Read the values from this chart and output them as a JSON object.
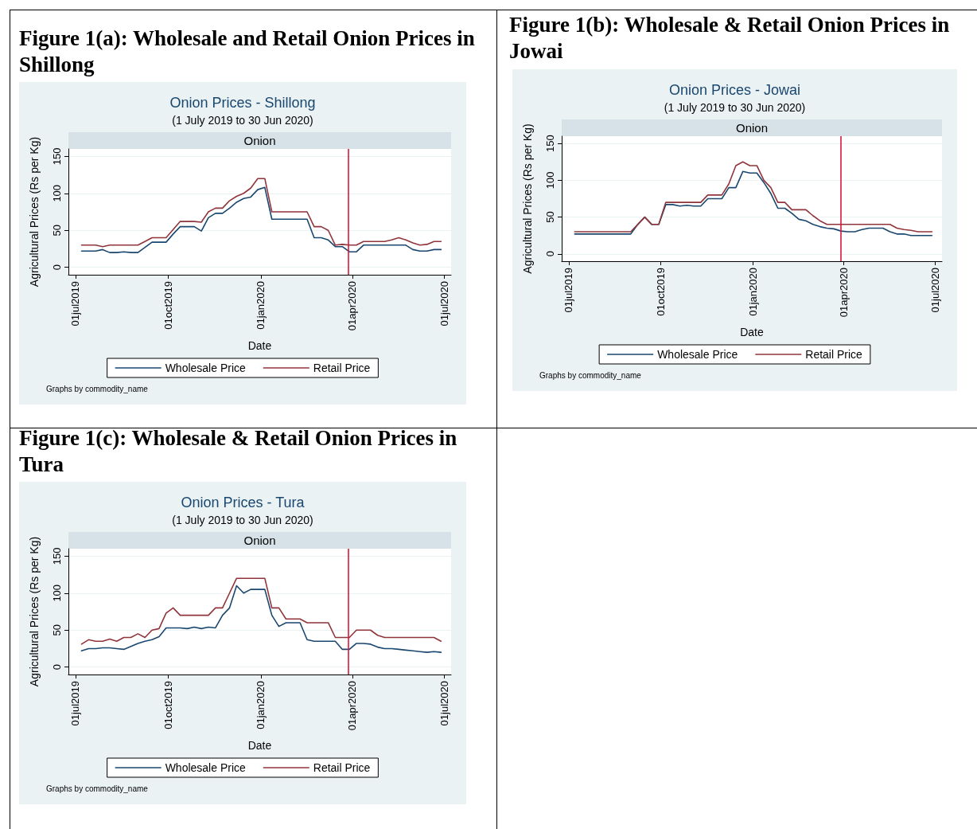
{
  "chart_data": [
    {
      "type": "line",
      "title": "Onion Prices - Shillong",
      "subtitle": "(1 July 2019 to 30 Jun 2020)",
      "xlabel": "Date",
      "ylabel": "Agricultural Prices (Rs per Kg)",
      "annotations": [
        "Figure 1(a): Wholesale and Retail Onion Prices in Shillong",
        "Onion",
        "Graphs by commodity_name"
      ],
      "x": [
        "2019-07-07",
        "2019-07-14",
        "2019-07-21",
        "2019-07-28",
        "2019-08-04",
        "2019-08-11",
        "2019-08-18",
        "2019-08-25",
        "2019-09-01",
        "2019-09-08",
        "2019-09-15",
        "2019-09-22",
        "2019-09-29",
        "2019-10-06",
        "2019-10-13",
        "2019-10-20",
        "2019-10-27",
        "2019-11-03",
        "2019-11-10",
        "2019-11-17",
        "2019-11-24",
        "2019-12-01",
        "2019-12-08",
        "2019-12-15",
        "2019-12-22",
        "2019-12-29",
        "2020-01-05",
        "2020-01-12",
        "2020-01-19",
        "2020-01-26",
        "2020-02-02",
        "2020-02-09",
        "2020-02-16",
        "2020-02-23",
        "2020-03-01",
        "2020-03-08",
        "2020-03-15",
        "2020-03-22",
        "2020-03-29",
        "2020-04-05",
        "2020-04-12",
        "2020-04-19",
        "2020-04-26",
        "2020-05-03",
        "2020-05-10",
        "2020-05-17",
        "2020-05-24",
        "2020-05-31",
        "2020-06-07",
        "2020-06-14",
        "2020-06-21",
        "2020-06-28"
      ],
      "series": [
        {
          "name": "Wholesale Price",
          "color": "#1a476f",
          "values": [
            22,
            22,
            22,
            24,
            20,
            20,
            21,
            20,
            20,
            27,
            34,
            34,
            34,
            45,
            55,
            55,
            55,
            49,
            67,
            73,
            73,
            80,
            88,
            93,
            95,
            105,
            108,
            65,
            65,
            65,
            65,
            65,
            65,
            40,
            40,
            37,
            28,
            28,
            21,
            21,
            30,
            30,
            30,
            30,
            30,
            30,
            30,
            24,
            22,
            22,
            24,
            24
          ]
        },
        {
          "name": "Retail Price",
          "color": "#90353b",
          "values": [
            30,
            30,
            30,
            28,
            30,
            30,
            30,
            30,
            30,
            35,
            40,
            40,
            40,
            51,
            62,
            62,
            62,
            61,
            75,
            80,
            80,
            90,
            96,
            100,
            107,
            120,
            120,
            75,
            75,
            75,
            75,
            75,
            75,
            55,
            55,
            50,
            30,
            31,
            30,
            30,
            35,
            35,
            35,
            35,
            37,
            40,
            37,
            33,
            30,
            31,
            35,
            35
          ]
        }
      ],
      "xlim": [
        "2019-06-24",
        "2020-07-08"
      ],
      "xticks": [
        {
          "value": "2019-07-01",
          "label": "01jul2019"
        },
        {
          "value": "2019-10-01",
          "label": "01oct2019"
        },
        {
          "value": "2020-01-01",
          "label": "01jan2020"
        },
        {
          "value": "2020-04-01",
          "label": "01apr2020"
        },
        {
          "value": "2020-07-01",
          "label": "01jul2020"
        }
      ],
      "ylim": [
        -10,
        160
      ],
      "yticks": [
        0,
        50,
        100,
        150
      ],
      "ref_lines": [
        {
          "axis": "x",
          "value": "2020-03-28",
          "color": "#d8173c"
        }
      ],
      "grid": "y",
      "legend": "bottom",
      "line_style": "solid"
    },
    {
      "type": "line",
      "title": "Onion Prices - Jowai",
      "subtitle": "(1 July 2019 to 30 Jun 2020)",
      "xlabel": "Date",
      "ylabel": "Agricultural Prices (Rs per Kg)",
      "annotations": [
        "Figure 1(b): Wholesale & Retail Onion Prices in Jowai",
        "Onion",
        "Graphs by commodity_name"
      ],
      "x": [
        "2019-07-07",
        "2019-07-14",
        "2019-07-21",
        "2019-07-28",
        "2019-08-04",
        "2019-08-11",
        "2019-08-18",
        "2019-08-25",
        "2019-09-01",
        "2019-09-08",
        "2019-09-15",
        "2019-09-22",
        "2019-09-29",
        "2019-10-06",
        "2019-10-13",
        "2019-10-20",
        "2019-10-27",
        "2019-11-03",
        "2019-11-10",
        "2019-11-17",
        "2019-11-24",
        "2019-12-01",
        "2019-12-08",
        "2019-12-15",
        "2019-12-22",
        "2019-12-29",
        "2020-01-05",
        "2020-01-12",
        "2020-01-19",
        "2020-01-26",
        "2020-02-02",
        "2020-02-09",
        "2020-02-16",
        "2020-02-23",
        "2020-03-01",
        "2020-03-08",
        "2020-03-15",
        "2020-03-22",
        "2020-03-29",
        "2020-04-05",
        "2020-04-12",
        "2020-04-19",
        "2020-04-26",
        "2020-05-03",
        "2020-05-10",
        "2020-05-17",
        "2020-05-24",
        "2020-05-31",
        "2020-06-07",
        "2020-06-14",
        "2020-06-21",
        "2020-06-28"
      ],
      "series": [
        {
          "name": "Wholesale Price",
          "color": "#1a476f",
          "values": [
            27,
            27,
            27,
            27,
            27,
            27,
            27,
            27,
            27,
            40,
            50,
            40,
            40,
            67,
            67,
            65,
            66,
            65,
            65,
            75,
            75,
            75,
            90,
            90,
            112,
            110,
            110,
            97,
            82,
            62,
            62,
            55,
            47,
            45,
            40,
            37,
            35,
            34,
            31,
            30,
            30,
            33,
            35,
            35,
            35,
            30,
            27,
            27,
            25,
            25,
            25,
            25
          ]
        },
        {
          "name": "Retail Price",
          "color": "#90353b",
          "values": [
            30,
            30,
            30,
            30,
            30,
            30,
            30,
            30,
            30,
            40,
            50,
            40,
            40,
            70,
            70,
            70,
            70,
            70,
            70,
            80,
            80,
            80,
            95,
            120,
            125,
            120,
            120,
            100,
            90,
            70,
            70,
            60,
            60,
            60,
            52,
            45,
            40,
            40,
            40,
            40,
            40,
            40,
            40,
            40,
            40,
            40,
            35,
            33,
            32,
            30,
            30,
            30
          ]
        }
      ],
      "xlim": [
        "2019-06-24",
        "2020-07-08"
      ],
      "xticks": [
        {
          "value": "2019-07-01",
          "label": "01jul2019"
        },
        {
          "value": "2019-10-01",
          "label": "01oct2019"
        },
        {
          "value": "2020-01-01",
          "label": "01jan2020"
        },
        {
          "value": "2020-04-01",
          "label": "01apr2020"
        },
        {
          "value": "2020-07-01",
          "label": "01jul2020"
        }
      ],
      "ylim": [
        -10,
        160
      ],
      "yticks": [
        0,
        50,
        100,
        150
      ],
      "ref_lines": [
        {
          "axis": "x",
          "value": "2020-03-29",
          "color": "#d8173c"
        }
      ],
      "grid": "y",
      "legend": "bottom",
      "line_style": "solid"
    },
    {
      "type": "line",
      "title": "Onion Prices - Tura",
      "subtitle": "(1 July 2019 to 30 Jun 2020)",
      "xlabel": "Date",
      "ylabel": "Agricultural Prices (Rs per Kg)",
      "annotations": [
        "Figure 1(c): Wholesale & Retail Onion Prices in Tura",
        "Onion",
        "Graphs by commodity_name"
      ],
      "x": [
        "2019-07-07",
        "2019-07-14",
        "2019-07-21",
        "2019-07-28",
        "2019-08-04",
        "2019-08-11",
        "2019-08-18",
        "2019-08-25",
        "2019-09-01",
        "2019-09-08",
        "2019-09-15",
        "2019-09-22",
        "2019-09-29",
        "2019-10-06",
        "2019-10-13",
        "2019-10-20",
        "2019-10-27",
        "2019-11-03",
        "2019-11-10",
        "2019-11-17",
        "2019-11-24",
        "2019-12-01",
        "2019-12-08",
        "2019-12-15",
        "2019-12-22",
        "2019-12-29",
        "2020-01-05",
        "2020-01-12",
        "2020-01-19",
        "2020-01-26",
        "2020-02-02",
        "2020-02-09",
        "2020-02-16",
        "2020-02-23",
        "2020-03-01",
        "2020-03-08",
        "2020-03-15",
        "2020-03-22",
        "2020-03-29",
        "2020-04-05",
        "2020-04-12",
        "2020-04-19",
        "2020-04-26",
        "2020-05-03",
        "2020-05-10",
        "2020-05-17",
        "2020-05-24",
        "2020-05-31",
        "2020-06-07",
        "2020-06-14",
        "2020-06-21",
        "2020-06-28"
      ],
      "series": [
        {
          "name": "Wholesale Price",
          "color": "#1a476f",
          "values": [
            22,
            25,
            25,
            26,
            26,
            25,
            24,
            28,
            32,
            35,
            37,
            41,
            53,
            53,
            53,
            52,
            54,
            52,
            54,
            53,
            70,
            80,
            110,
            100,
            105,
            105,
            105,
            70,
            55,
            60,
            60,
            60,
            37,
            35,
            35,
            35,
            35,
            24,
            24,
            32,
            32,
            31,
            27,
            25,
            25,
            24,
            23,
            22,
            21,
            20,
            21,
            20
          ]
        },
        {
          "name": "Retail Price",
          "color": "#90353b",
          "values": [
            31,
            37,
            35,
            35,
            38,
            35,
            40,
            40,
            45,
            40,
            50,
            52,
            73,
            80,
            70,
            70,
            70,
            70,
            70,
            80,
            80,
            100,
            120,
            120,
            120,
            120,
            120,
            80,
            80,
            65,
            65,
            65,
            60,
            60,
            60,
            60,
            40,
            40,
            40,
            50,
            50,
            50,
            43,
            40,
            40,
            40,
            40,
            40,
            40,
            40,
            40,
            35
          ]
        }
      ],
      "xlim": [
        "2019-06-24",
        "2020-07-08"
      ],
      "xticks": [
        {
          "value": "2019-07-01",
          "label": "01jul2019"
        },
        {
          "value": "2019-10-01",
          "label": "01oct2019"
        },
        {
          "value": "2020-01-01",
          "label": "01jan2020"
        },
        {
          "value": "2020-04-01",
          "label": "01apr2020"
        },
        {
          "value": "2020-07-01",
          "label": "01jul2020"
        }
      ],
      "ylim": [
        -10,
        160
      ],
      "yticks": [
        0,
        50,
        100,
        150
      ],
      "ref_lines": [
        {
          "axis": "x",
          "value": "2020-03-28",
          "color": "#d8173c"
        }
      ],
      "grid": "y",
      "legend": "bottom",
      "line_style": "solid"
    }
  ]
}
